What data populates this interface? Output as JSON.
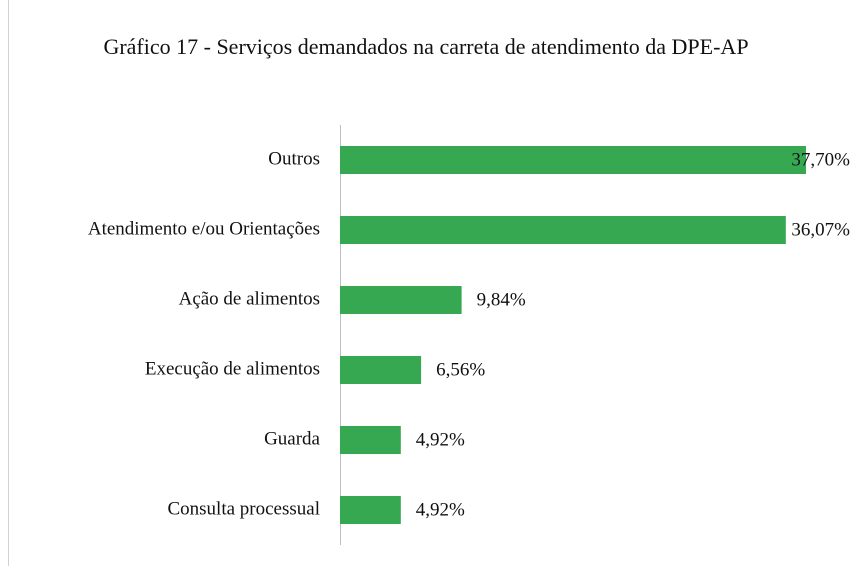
{
  "chart_data": {
    "type": "bar",
    "orientation": "horizontal",
    "title": "Gráfico 17 - Serviços demandados na carreta de atendimento da DPE-AP",
    "categories": [
      "Outros",
      "Atendimento e/ou Orientações",
      "Ação de alimentos",
      "Execução de alimentos",
      "Guarda",
      "Consulta processual"
    ],
    "values": [
      37.7,
      36.07,
      9.84,
      6.56,
      4.92,
      4.92
    ],
    "value_labels": [
      "37,70%",
      "36,07%",
      "9,84%",
      "6,56%",
      "4,92%",
      "4,92%"
    ],
    "color": "#36a852"
  }
}
